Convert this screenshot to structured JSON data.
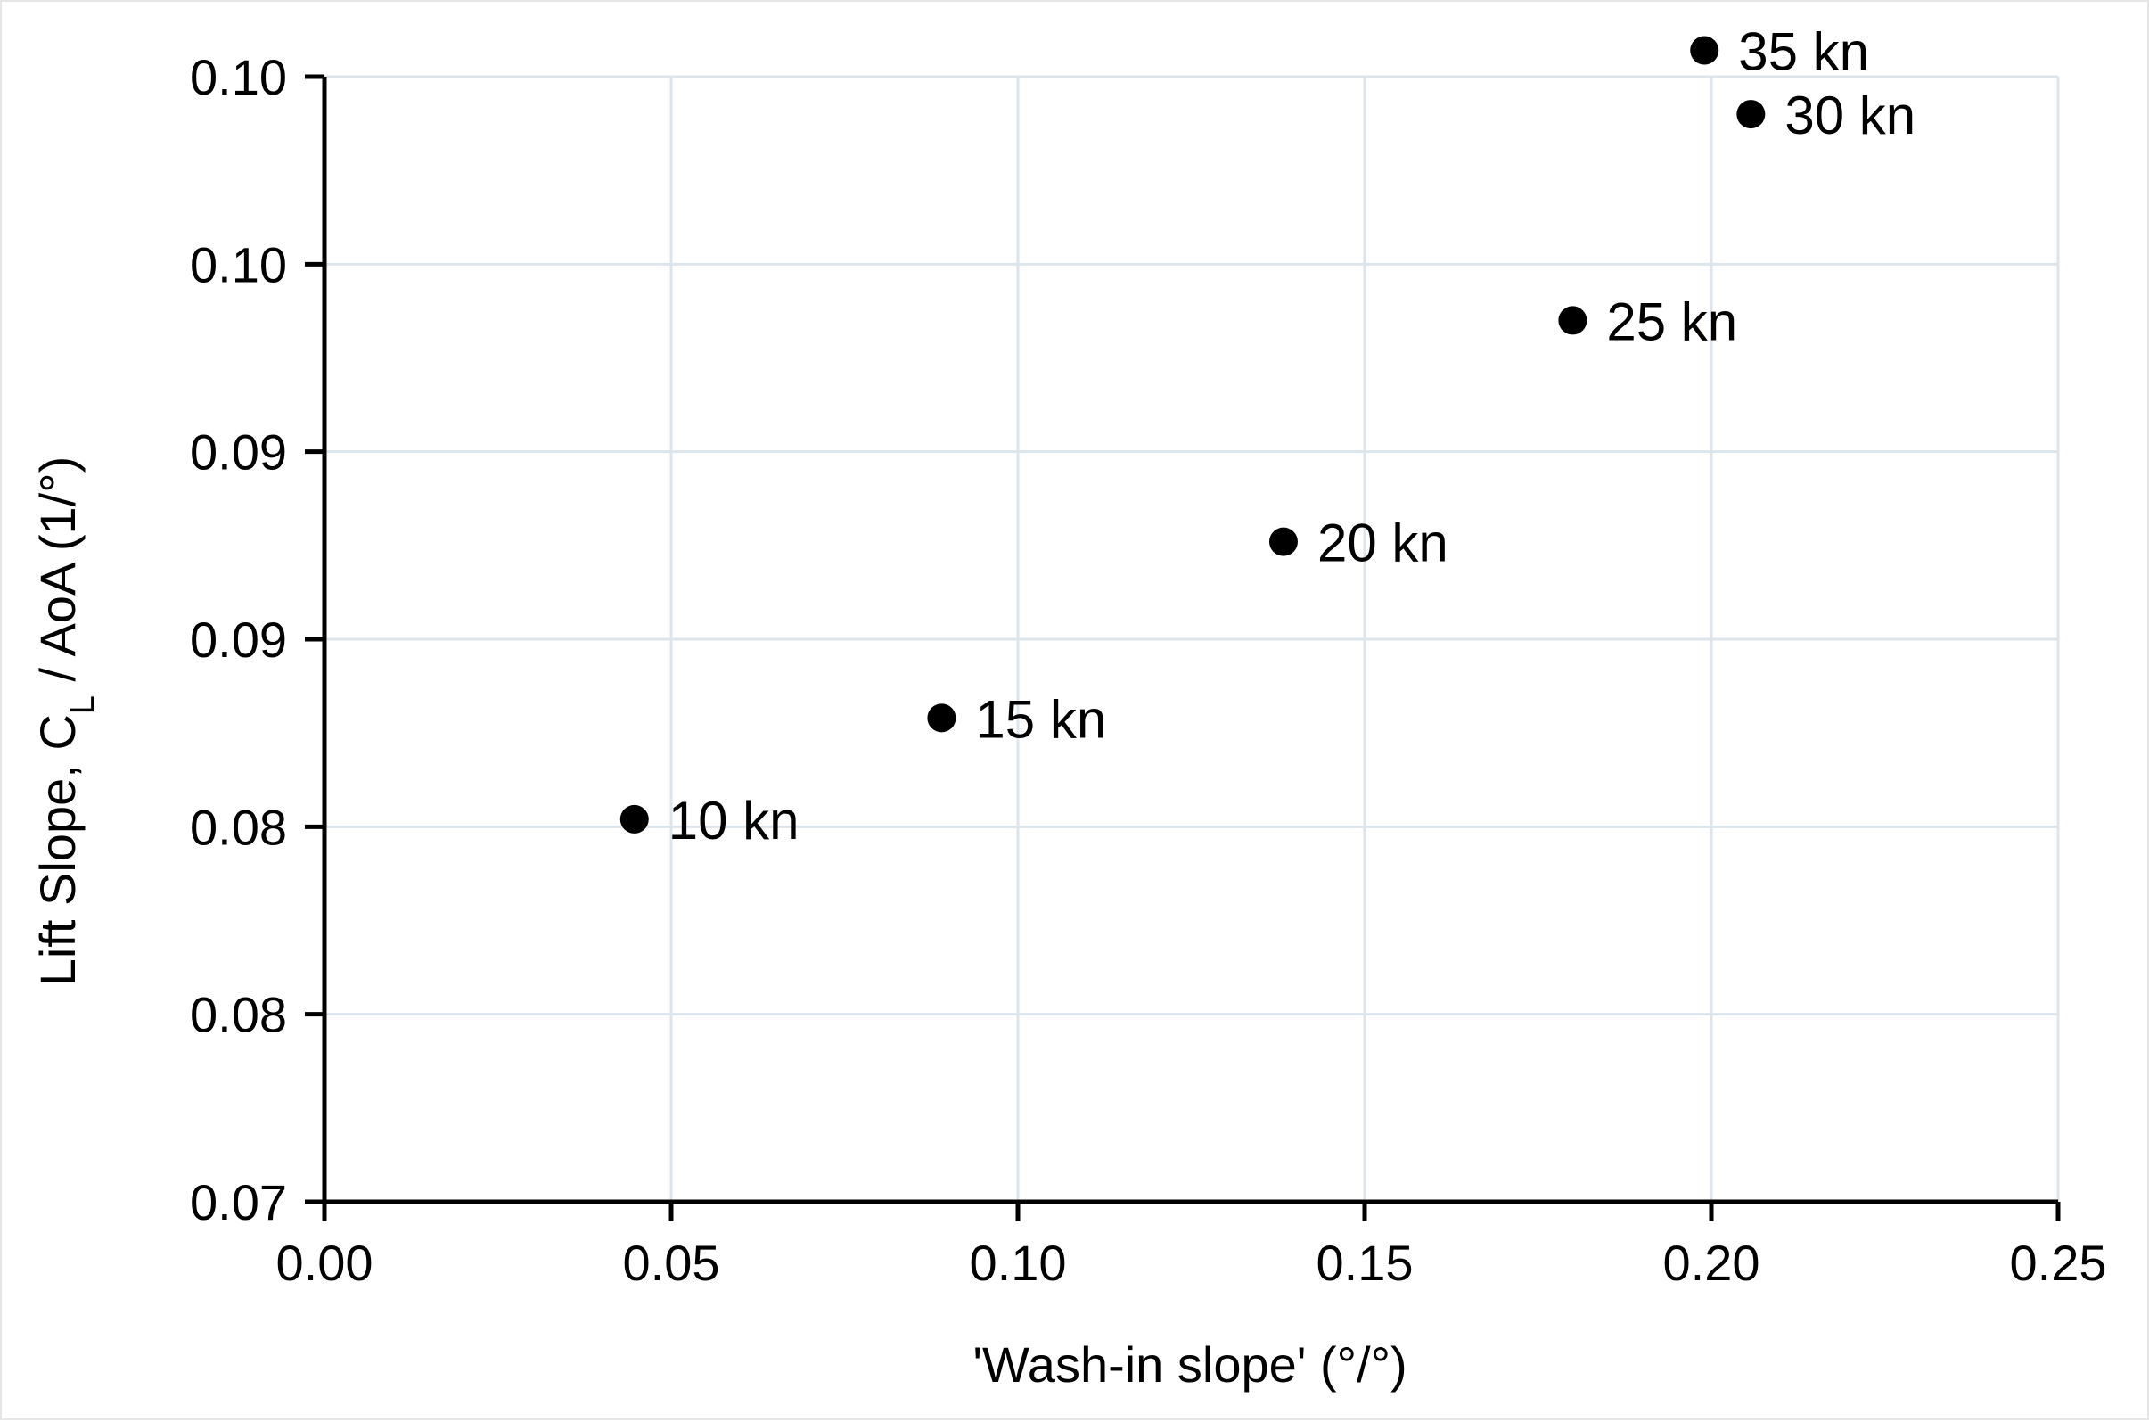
{
  "chart_data": {
    "type": "scatter",
    "title": "",
    "xlabel": "'Wash-in slope' (°/°)",
    "ylabel": {
      "prefix": "Lift Slope, C",
      "subscript": "L",
      "suffix": " / AoA (1/°)"
    },
    "xlim": [
      0,
      0.25
    ],
    "ylim": [
      0.07,
      0.1
    ],
    "x_ticks": [
      0,
      0.05,
      0.1,
      0.15,
      0.2,
      0.25
    ],
    "x_tick_labels": [
      "0.00",
      "0.05",
      "0.10",
      "0.15",
      "0.20",
      "0.25"
    ],
    "y_ticks": [
      0.07,
      0.075,
      0.08,
      0.085,
      0.09,
      0.095,
      0.1
    ],
    "y_tick_labels": [
      "0.07",
      "0.08",
      "0.08",
      "0.09",
      "0.09",
      "0.10",
      "0.10"
    ],
    "grid": true,
    "legend": "none",
    "marker_color": "#000000",
    "grid_color": "#dde5ec",
    "points": [
      {
        "x": 0.0447,
        "y": 0.0802,
        "label": "10 kn"
      },
      {
        "x": 0.089,
        "y": 0.0829,
        "label": "15 kn"
      },
      {
        "x": 0.1383,
        "y": 0.0876,
        "label": "20 kn"
      },
      {
        "x": 0.18,
        "y": 0.0935,
        "label": "25 kn"
      },
      {
        "x": 0.2057,
        "y": 0.099,
        "label": "30 kn"
      },
      {
        "x": 0.199,
        "y": 0.1007,
        "label": "35 kn"
      }
    ]
  }
}
